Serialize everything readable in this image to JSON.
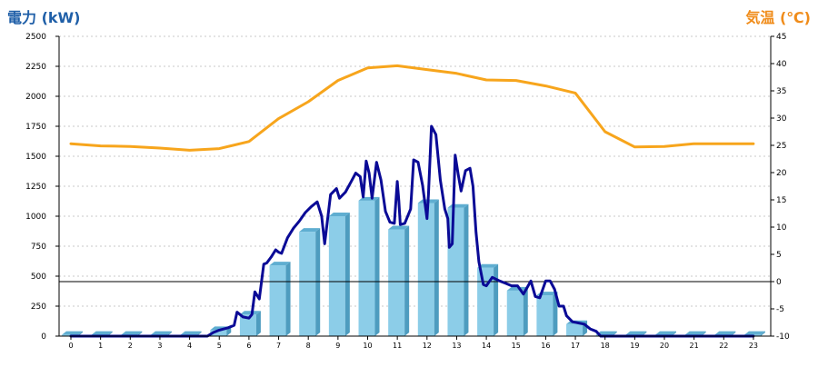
{
  "chart_data": {
    "type": "bar+line",
    "left_axis_title": "電力 (kW)",
    "right_axis_title": "気温 (℃)",
    "colors": {
      "left_title": "#1f5fa8",
      "right_title": "#f08c1a",
      "bar_front": "#8ccde8",
      "bar_side": "#4e9cbf",
      "bar_top": "#5faed1",
      "power_line": "#0a0a96",
      "temperature_line": "#f7a51c",
      "grid": "#c8c8c8",
      "reference_line": "#000000"
    },
    "x_ticks": [
      "0",
      "1",
      "2",
      "3",
      "4",
      "5",
      "6",
      "7",
      "8",
      "9",
      "10",
      "11",
      "12",
      "13",
      "14",
      "15",
      "16",
      "17",
      "18",
      "19",
      "20",
      "21",
      "22",
      "23"
    ],
    "y_left": {
      "min": 0,
      "max": 2500,
      "ticks": [
        "0",
        "250",
        "500",
        "750",
        "1000",
        "1250",
        "1500",
        "1750",
        "2000",
        "2250",
        "2500"
      ]
    },
    "y_right": {
      "min": -10,
      "max": 45,
      "ticks": [
        "-10",
        "-5",
        "0",
        "5",
        "10",
        "15",
        "20",
        "25",
        "30",
        "35",
        "40",
        "45"
      ]
    },
    "grid": true,
    "reference_line_right_value": 0,
    "bars": {
      "x": [
        0,
        1,
        2,
        3,
        4,
        5,
        6,
        7,
        8,
        9,
        10,
        11,
        12,
        13,
        14,
        15,
        16,
        17,
        18,
        19,
        20,
        21,
        22,
        23
      ],
      "values": [
        10,
        10,
        10,
        10,
        10,
        50,
        180,
        590,
        870,
        1000,
        1130,
        890,
        1110,
        1070,
        570,
        380,
        340,
        100,
        10,
        10,
        10,
        10,
        10,
        10
      ]
    },
    "power_line": {
      "points": [
        [
          0,
          0
        ],
        [
          1,
          0
        ],
        [
          2,
          0
        ],
        [
          3,
          0
        ],
        [
          4,
          0
        ],
        [
          4.6,
          0
        ],
        [
          4.8,
          30
        ],
        [
          5,
          50
        ],
        [
          5.3,
          70
        ],
        [
          5.5,
          90
        ],
        [
          5.6,
          200
        ],
        [
          5.8,
          160
        ],
        [
          6,
          150
        ],
        [
          6.1,
          180
        ],
        [
          6.2,
          370
        ],
        [
          6.35,
          310
        ],
        [
          6.5,
          600
        ],
        [
          6.6,
          610
        ],
        [
          6.75,
          660
        ],
        [
          6.9,
          720
        ],
        [
          7,
          700
        ],
        [
          7.1,
          690
        ],
        [
          7.3,
          820
        ],
        [
          7.5,
          900
        ],
        [
          7.7,
          960
        ],
        [
          7.9,
          1030
        ],
        [
          8.1,
          1080
        ],
        [
          8.3,
          1120
        ],
        [
          8.45,
          1000
        ],
        [
          8.55,
          770
        ],
        [
          8.75,
          1180
        ],
        [
          8.95,
          1230
        ],
        [
          9.05,
          1150
        ],
        [
          9.25,
          1200
        ],
        [
          9.45,
          1290
        ],
        [
          9.6,
          1360
        ],
        [
          9.75,
          1330
        ],
        [
          9.85,
          1160
        ],
        [
          9.95,
          1460
        ],
        [
          10.05,
          1360
        ],
        [
          10.15,
          1150
        ],
        [
          10.3,
          1450
        ],
        [
          10.45,
          1300
        ],
        [
          10.6,
          1040
        ],
        [
          10.75,
          950
        ],
        [
          10.9,
          940
        ],
        [
          11.0,
          1290
        ],
        [
          11.05,
          1130
        ],
        [
          11.1,
          930
        ],
        [
          11.25,
          940
        ],
        [
          11.45,
          1060
        ],
        [
          11.55,
          1470
        ],
        [
          11.7,
          1450
        ],
        [
          11.85,
          1260
        ],
        [
          12.0,
          980
        ],
        [
          12.05,
          1180
        ],
        [
          12.15,
          1750
        ],
        [
          12.3,
          1680
        ],
        [
          12.45,
          1300
        ],
        [
          12.6,
          1060
        ],
        [
          12.7,
          980
        ],
        [
          12.75,
          740
        ],
        [
          12.85,
          770
        ],
        [
          12.95,
          1510
        ],
        [
          13.05,
          1350
        ],
        [
          13.15,
          1210
        ],
        [
          13.3,
          1380
        ],
        [
          13.45,
          1400
        ],
        [
          13.55,
          1250
        ],
        [
          13.65,
          870
        ],
        [
          13.75,
          620
        ],
        [
          13.9,
          430
        ],
        [
          14.0,
          420
        ],
        [
          14.2,
          490
        ],
        [
          14.45,
          460
        ],
        [
          14.65,
          440
        ],
        [
          14.85,
          420
        ],
        [
          15.05,
          420
        ],
        [
          15.25,
          350
        ],
        [
          15.5,
          460
        ],
        [
          15.65,
          330
        ],
        [
          15.8,
          320
        ],
        [
          16.0,
          460
        ],
        [
          16.15,
          460
        ],
        [
          16.3,
          390
        ],
        [
          16.45,
          250
        ],
        [
          16.6,
          250
        ],
        [
          16.7,
          170
        ],
        [
          16.9,
          120
        ],
        [
          17.1,
          110
        ],
        [
          17.3,
          100
        ],
        [
          17.5,
          60
        ],
        [
          17.7,
          40
        ],
        [
          17.85,
          0
        ],
        [
          18,
          0
        ],
        [
          19,
          0
        ],
        [
          20,
          0
        ],
        [
          21,
          0
        ],
        [
          22,
          0
        ],
        [
          23,
          0
        ]
      ]
    },
    "temperature_line": {
      "points": [
        [
          0,
          25.3
        ],
        [
          1,
          24.9
        ],
        [
          2,
          24.8
        ],
        [
          3,
          24.5
        ],
        [
          4,
          24.1
        ],
        [
          5,
          24.4
        ],
        [
          6,
          25.7
        ],
        [
          7,
          29.9
        ],
        [
          8,
          33.0
        ],
        [
          9,
          36.9
        ],
        [
          10,
          39.2
        ],
        [
          11,
          39.6
        ],
        [
          12,
          38.9
        ],
        [
          13,
          38.2
        ],
        [
          14,
          37.0
        ],
        [
          15,
          36.9
        ],
        [
          16,
          35.9
        ],
        [
          17,
          34.6
        ],
        [
          18,
          27.5
        ],
        [
          19,
          24.7
        ],
        [
          20,
          24.8
        ],
        [
          21,
          25.3
        ],
        [
          22,
          25.3
        ],
        [
          23,
          25.3
        ]
      ]
    }
  }
}
